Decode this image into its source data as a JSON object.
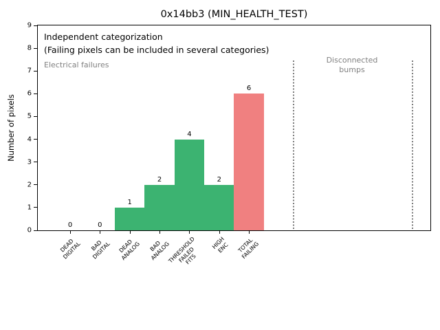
{
  "chart_data": {
    "type": "bar",
    "title": "0x14bb3 (MIN_HEALTH_TEST)",
    "xlabel": "",
    "ylabel": "Number of pixels",
    "ylim": [
      0,
      9
    ],
    "yticks": [
      0,
      1,
      2,
      3,
      4,
      5,
      6,
      7,
      8,
      9
    ],
    "categories": [
      "DEAD\nDIGITAL",
      "BAD\nDIGITAL",
      "DEAD\nANALOG",
      "BAD\nANALOG",
      "THRESHOLD\nFAILED\nFITS",
      "HIGH\nENC",
      "TOTAL\nFAILING"
    ],
    "values": [
      0,
      0,
      1,
      2,
      4,
      2,
      6
    ],
    "bar_value_labels": [
      "0",
      "0",
      "1",
      "2",
      "4",
      "2",
      "6"
    ],
    "bar_colors": [
      "#3cb371",
      "#3cb371",
      "#3cb371",
      "#3cb371",
      "#3cb371",
      "#3cb371",
      "#f08080"
    ],
    "grid": false,
    "legend": null,
    "annotations": {
      "note_line1": "Independent categorization",
      "note_line2": "(Failing pixels can be included in several categories)",
      "left_region_label": "Electrical failures",
      "right_region_label": "Disconnected\nbumps"
    },
    "separator_lines": {
      "style": "dotted",
      "color": "#7a7a7a",
      "count": 2
    }
  },
  "colors": {
    "background": "#ffffff",
    "text": "#000000",
    "muted_text": "#808080",
    "category_bar_green": "#3cb371",
    "total_bar_red": "#f08080"
  }
}
